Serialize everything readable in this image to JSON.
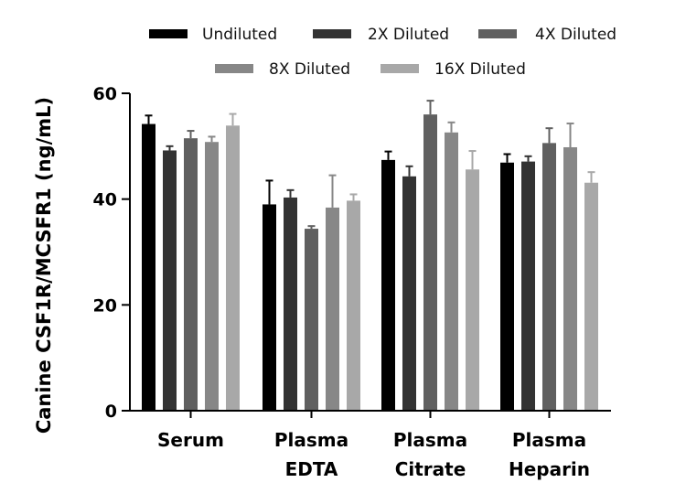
{
  "chart_data": {
    "type": "bar",
    "title": "",
    "xlabel": "",
    "ylabel": "Canine CSF1R/MCSFR1 (ng/mL)",
    "ylim": [
      0,
      60
    ],
    "yticks": [
      0,
      20,
      40,
      60
    ],
    "categories": [
      [
        "Serum"
      ],
      [
        "Plasma",
        "EDTA"
      ],
      [
        "Plasma",
        "Citrate"
      ],
      [
        "Plasma",
        "Heparin"
      ]
    ],
    "series": [
      {
        "name": "Undiluted",
        "color": "#000000",
        "values": [
          54.2,
          39.0,
          47.4,
          46.9
        ],
        "errors": [
          1.6,
          4.5,
          1.6,
          1.6
        ]
      },
      {
        "name": "2X Diluted",
        "color": "#333333",
        "values": [
          49.2,
          40.3,
          44.3,
          47.1
        ],
        "errors": [
          0.8,
          1.4,
          1.9,
          1.0
        ]
      },
      {
        "name": "4X Diluted",
        "color": "#606060",
        "values": [
          51.5,
          34.4,
          56.0,
          50.6
        ],
        "errors": [
          1.4,
          0.5,
          2.6,
          2.8
        ]
      },
      {
        "name": "8X Diluted",
        "color": "#878787",
        "values": [
          50.8,
          38.4,
          52.6,
          49.8
        ],
        "errors": [
          1.0,
          6.1,
          1.9,
          4.5
        ]
      },
      {
        "name": "16X Diluted",
        "color": "#a8a8a8",
        "values": [
          53.9,
          39.7,
          45.6,
          43.1
        ],
        "errors": [
          2.2,
          1.2,
          3.5,
          2.0
        ]
      }
    ],
    "legend_position": "top"
  }
}
